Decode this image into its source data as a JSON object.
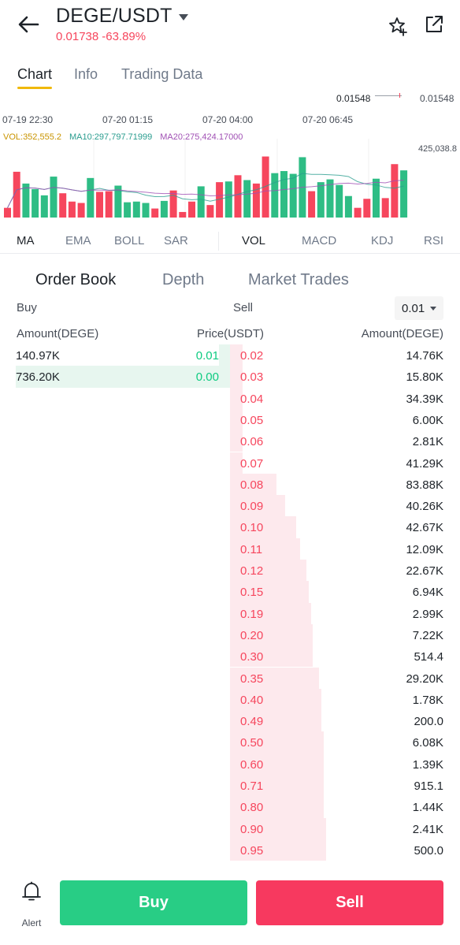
{
  "header": {
    "pair": "DEGE/USDT",
    "last_price": "0.01738",
    "change": "-63.89%"
  },
  "tabs": [
    {
      "label": "Chart"
    },
    {
      "label": "Info"
    },
    {
      "label": "Trading Data"
    }
  ],
  "chart": {
    "price_marker": "0.01548",
    "price_axis": "0.01548",
    "times": [
      "07-19 22:30",
      "07-20 01:15",
      "07-20 04:00",
      "07-20 06:45"
    ],
    "vol_label": "VOL:352,555.2",
    "ma10_label": "MA10:297,797.71999",
    "ma20_label": "MA20:275,424.17000",
    "vol_axis_max": "425,038.8",
    "colors": {
      "up": "#2ebd85",
      "down": "#f6465d",
      "vol_text": "#c99400",
      "ma10": "#2a9d8f",
      "ma20": "#a050b4"
    },
    "volume_bars": [
      {
        "v": 0.14,
        "up": false
      },
      {
        "v": 0.66,
        "up": false
      },
      {
        "v": 0.49,
        "up": true
      },
      {
        "v": 0.41,
        "up": true
      },
      {
        "v": 0.32,
        "up": true
      },
      {
        "v": 0.59,
        "up": true
      },
      {
        "v": 0.35,
        "up": false
      },
      {
        "v": 0.23,
        "up": false
      },
      {
        "v": 0.21,
        "up": false
      },
      {
        "v": 0.57,
        "up": true
      },
      {
        "v": 0.37,
        "up": false
      },
      {
        "v": 0.38,
        "up": false
      },
      {
        "v": 0.46,
        "up": true
      },
      {
        "v": 0.22,
        "up": true
      },
      {
        "v": 0.23,
        "up": true
      },
      {
        "v": 0.21,
        "up": true
      },
      {
        "v": 0.13,
        "up": false
      },
      {
        "v": 0.24,
        "up": true
      },
      {
        "v": 0.39,
        "up": false
      },
      {
        "v": 0.08,
        "up": false
      },
      {
        "v": 0.23,
        "up": false
      },
      {
        "v": 0.45,
        "up": true
      },
      {
        "v": 0.18,
        "up": false
      },
      {
        "v": 0.51,
        "up": false
      },
      {
        "v": 0.52,
        "up": true
      },
      {
        "v": 0.61,
        "up": false
      },
      {
        "v": 0.54,
        "up": true
      },
      {
        "v": 0.49,
        "up": false
      },
      {
        "v": 0.88,
        "up": false
      },
      {
        "v": 0.64,
        "up": true
      },
      {
        "v": 0.67,
        "up": true
      },
      {
        "v": 0.63,
        "up": true
      },
      {
        "v": 0.87,
        "up": true
      },
      {
        "v": 0.38,
        "up": false
      },
      {
        "v": 0.51,
        "up": true
      },
      {
        "v": 0.55,
        "up": true
      },
      {
        "v": 0.47,
        "up": true
      },
      {
        "v": 0.31,
        "up": true
      },
      {
        "v": 0.14,
        "up": false
      },
      {
        "v": 0.27,
        "up": false
      },
      {
        "v": 0.56,
        "up": true
      },
      {
        "v": 0.28,
        "up": false
      },
      {
        "v": 0.77,
        "up": false
      },
      {
        "v": 0.68,
        "up": true
      }
    ]
  },
  "indicators": [
    {
      "label": "MA"
    },
    {
      "label": "EMA"
    },
    {
      "label": "BOLL"
    },
    {
      "label": "SAR"
    },
    {
      "label": "VOL"
    },
    {
      "label": "MACD"
    },
    {
      "label": "KDJ"
    },
    {
      "label": "RSI"
    }
  ],
  "book_tabs": [
    {
      "label": "Order Book"
    },
    {
      "label": "Depth"
    },
    {
      "label": "Market Trades"
    }
  ],
  "book": {
    "buy_label": "Buy",
    "sell_label": "Sell",
    "precision": "0.01",
    "col_amount_left": "Amount(DEGE)",
    "col_price": "Price(USDT)",
    "col_amount_right": "Amount(DEGE)",
    "bids": [
      {
        "amount": "140.97K",
        "price": "0.01",
        "depth": 0.05
      },
      {
        "amount": "736.20K",
        "price": "0.00",
        "depth": 1.0
      }
    ],
    "asks": [
      {
        "price": "0.02",
        "amount": "14.76K",
        "depth": 0.06
      },
      {
        "price": "0.03",
        "amount": "15.80K",
        "depth": 0.06
      },
      {
        "price": "0.04",
        "amount": "34.39K",
        "depth": 0.06
      },
      {
        "price": "0.05",
        "amount": "6.00K",
        "depth": 0.06
      },
      {
        "price": "0.06",
        "amount": "2.81K",
        "depth": 0.06
      },
      {
        "price": "0.07",
        "amount": "41.29K",
        "depth": 0.06
      },
      {
        "price": "0.08",
        "amount": "83.88K",
        "depth": 0.22
      },
      {
        "price": "0.09",
        "amount": "40.26K",
        "depth": 0.26
      },
      {
        "price": "0.10",
        "amount": "42.67K",
        "depth": 0.31
      },
      {
        "price": "0.11",
        "amount": "12.09K",
        "depth": 0.33
      },
      {
        "price": "0.12",
        "amount": "22.67K",
        "depth": 0.36
      },
      {
        "price": "0.15",
        "amount": "6.94K",
        "depth": 0.37
      },
      {
        "price": "0.19",
        "amount": "2.99K",
        "depth": 0.38
      },
      {
        "price": "0.20",
        "amount": "7.22K",
        "depth": 0.39
      },
      {
        "price": "0.30",
        "amount": "514.4",
        "depth": 0.39
      },
      {
        "price": "0.35",
        "amount": "29.20K",
        "depth": 0.42
      },
      {
        "price": "0.40",
        "amount": "1.78K",
        "depth": 0.43
      },
      {
        "price": "0.49",
        "amount": "200.0",
        "depth": 0.43
      },
      {
        "price": "0.50",
        "amount": "6.08K",
        "depth": 0.44
      },
      {
        "price": "0.60",
        "amount": "1.39K",
        "depth": 0.44
      },
      {
        "price": "0.71",
        "amount": "915.1",
        "depth": 0.44
      },
      {
        "price": "0.80",
        "amount": "1.44K",
        "depth": 0.44
      },
      {
        "price": "0.90",
        "amount": "2.41K",
        "depth": 0.45
      },
      {
        "price": "0.95",
        "amount": "500.0",
        "depth": 0.45
      }
    ]
  },
  "bottom": {
    "alert_label": "Alert",
    "buy_label": "Buy",
    "sell_label": "Sell"
  }
}
